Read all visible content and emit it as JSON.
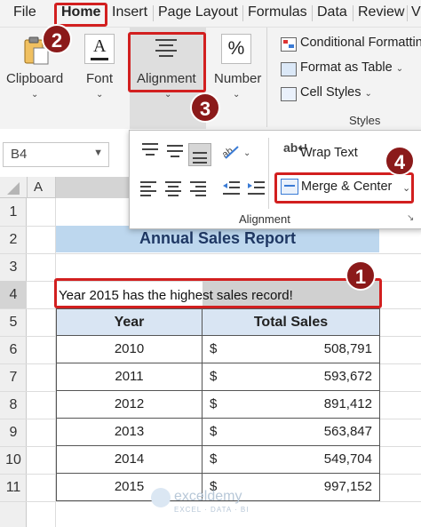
{
  "tabs": [
    "File",
    "Home",
    "Insert",
    "Page Layout",
    "Formulas",
    "Data",
    "Review",
    "V"
  ],
  "ribbon": {
    "clipboard_label": "Clipboard",
    "font_label": "Font",
    "alignment_label": "Alignment",
    "number_label": "Number",
    "number_icon": "%",
    "font_icon": "A",
    "styles": {
      "conditional": "Conditional Formatting",
      "format_table": "Format as Table",
      "cell_styles": "Cell Styles",
      "group_label": "Styles"
    }
  },
  "name_box": "B4",
  "columns": [
    "A"
  ],
  "alignment_popup": {
    "wrap_text": "Wrap Text",
    "merge_center": "Merge & Center",
    "group_label": "Alignment"
  },
  "badges": [
    "1",
    "2",
    "3",
    "4"
  ],
  "rows": [
    "1",
    "2",
    "3",
    "4",
    "5",
    "6",
    "7",
    "8",
    "9",
    "10",
    "11"
  ],
  "sheet": {
    "title": "Annual Sales Report",
    "note": "Year 2015 has the highest sales record!",
    "headers": [
      "Year",
      "Total Sales"
    ],
    "currency": "$",
    "records": [
      {
        "year": "2010",
        "sales": "508,791"
      },
      {
        "year": "2011",
        "sales": "593,672"
      },
      {
        "year": "2012",
        "sales": "891,412"
      },
      {
        "year": "2013",
        "sales": "563,847"
      },
      {
        "year": "2014",
        "sales": "549,704"
      },
      {
        "year": "2015",
        "sales": "997,152"
      }
    ]
  },
  "watermark": {
    "brand": "exceldemy",
    "tagline": "EXCEL · DATA · BI"
  },
  "colors": {
    "accent_red": "#d21f1f",
    "badge": "#8b1a1a",
    "title_fill": "#bdd7ee",
    "header_fill": "#d9e5f3",
    "title_text": "#1f3864"
  }
}
